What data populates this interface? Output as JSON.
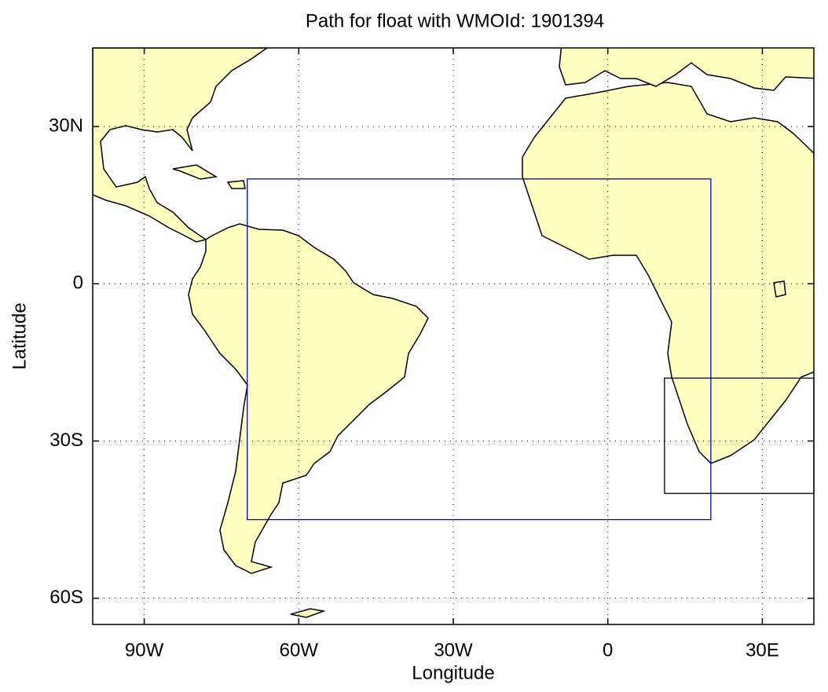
{
  "chart_data": {
    "type": "map",
    "title": "Path for float with WMOId: 1901394",
    "xlabel": "Longitude",
    "ylabel": "Latitude",
    "xlim": [
      -100,
      40
    ],
    "ylim": [
      -65,
      45
    ],
    "xticks": [
      {
        "value": -90,
        "label": "90W"
      },
      {
        "value": -60,
        "label": "60W"
      },
      {
        "value": -30,
        "label": "30W"
      },
      0,
      {
        "value": 30,
        "label": "30E"
      }
    ],
    "yticks": [
      {
        "value": -60,
        "label": "60S"
      },
      {
        "value": -30,
        "label": "30S"
      },
      0,
      {
        "value": 30,
        "label": "30N"
      }
    ],
    "grid": true,
    "land_color": "#ffffc0",
    "boxes": [
      {
        "color": "#0000cc",
        "lon": [
          -70,
          20
        ],
        "lat": [
          -45,
          20
        ]
      },
      {
        "color": "#000000",
        "lon": [
          11,
          40
        ],
        "lat": [
          -40,
          -18
        ]
      }
    ]
  }
}
